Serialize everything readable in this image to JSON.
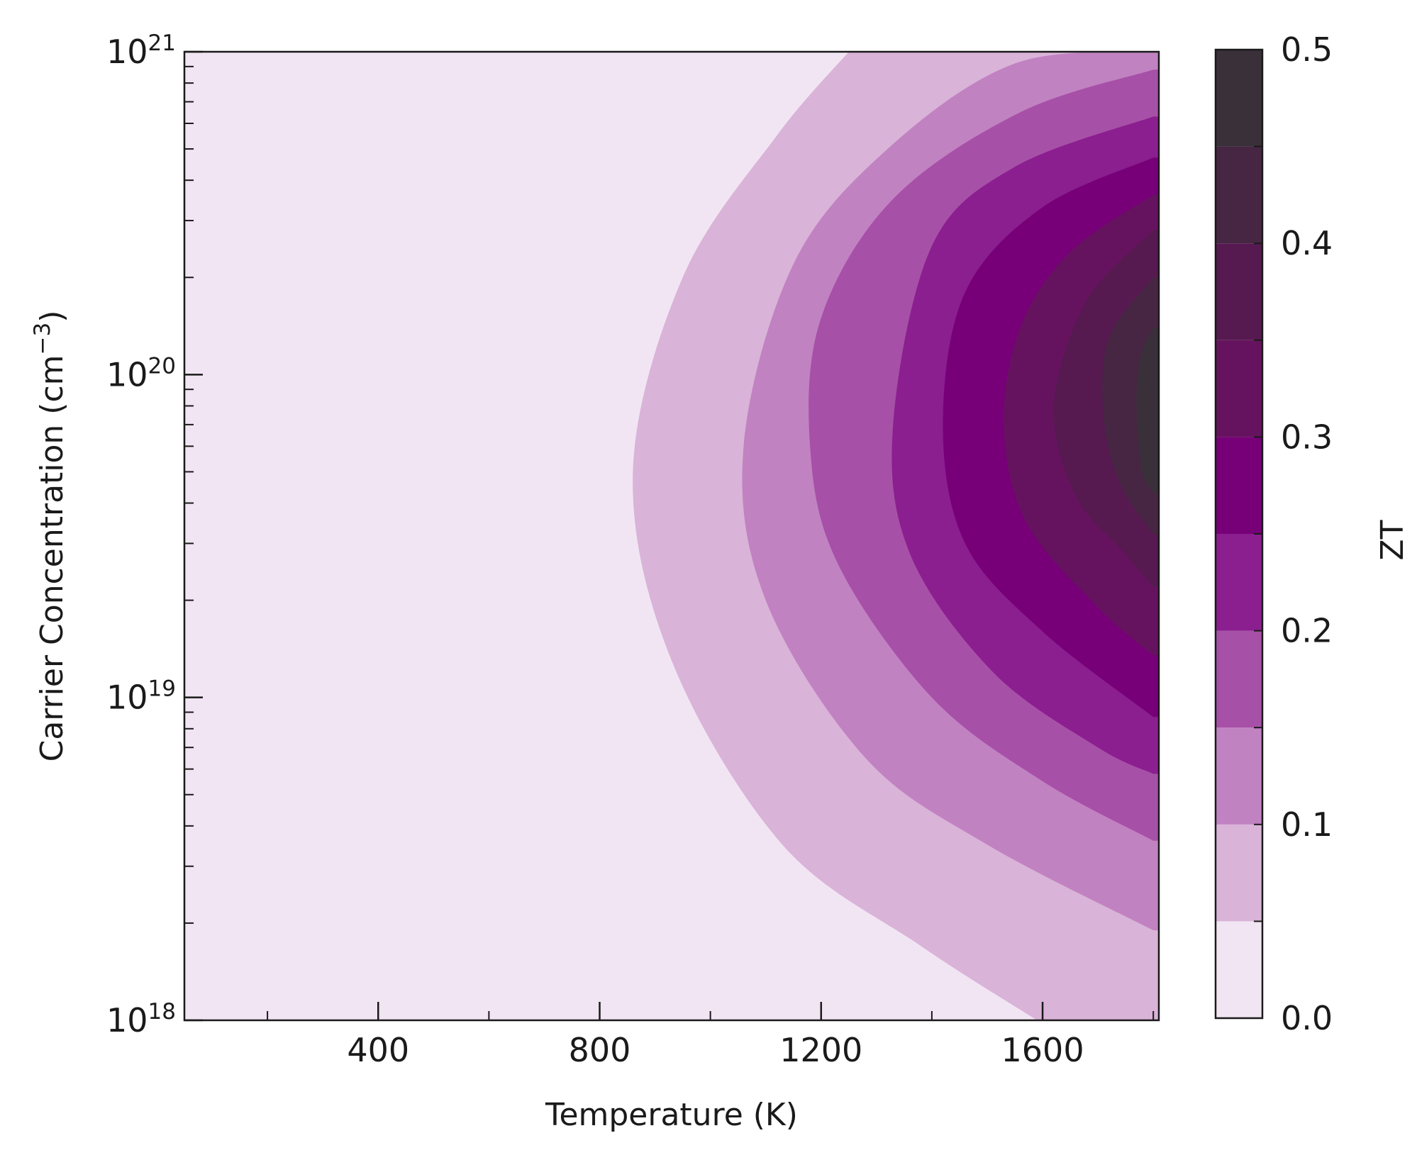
{
  "chart_data": {
    "type": "heatmap",
    "title": "",
    "xlabel": "Temperature (K)",
    "ylabel": {
      "main": "Carrier Concentration (cm",
      "sup": "−3",
      "close": ")"
    },
    "x": {
      "range": [
        50,
        1810
      ],
      "ticks_major": [
        {
          "value": 400,
          "label": "400"
        },
        {
          "value": 800,
          "label": "800"
        },
        {
          "value": 1200,
          "label": "1200"
        },
        {
          "value": 1600,
          "label": "1600"
        }
      ],
      "ticks_minor": [
        200,
        600,
        1000,
        1400,
        1800
      ]
    },
    "y": {
      "scale": "log",
      "range": [
        1e+18,
        1e+21
      ],
      "ticks_major": [
        {
          "value": 1e+18,
          "base": "10",
          "exp": "18"
        },
        {
          "value": 1e+19,
          "base": "10",
          "exp": "19"
        },
        {
          "value": 1e+20,
          "base": "10",
          "exp": "20"
        },
        {
          "value": 1e+21,
          "base": "10",
          "exp": "21"
        }
      ]
    },
    "peak": {
      "temperature": 1800,
      "concentration": 7.5e+19
    },
    "levels": [
      0.0,
      0.05,
      0.1,
      0.15,
      0.2,
      0.25,
      0.3,
      0.35,
      0.4,
      0.45,
      0.5
    ],
    "colors": [
      "#f2e5f3",
      "#d9b3d8",
      "#c182c1",
      "#a750a7",
      "#8b1f8f",
      "#770079",
      "#66135f",
      "#561950",
      "#472643",
      "#393039"
    ],
    "contour_boundaries": [
      {
        "level": 0.05,
        "points": [
          [
            1250,
            1e+21
          ],
          [
            1120,
            5.5e+20
          ],
          [
            950,
            2e+20
          ],
          [
            860,
            5e+19
          ],
          [
            930,
            1.3e+19
          ],
          [
            1130,
            3.5e+18
          ],
          [
            1380,
            1.7e+18
          ],
          [
            1590,
            1e+18
          ]
        ]
      },
      {
        "level": 0.1,
        "points": [
          [
            1800,
            1e+21
          ],
          [
            1550,
            9.2e+20
          ],
          [
            1320,
            5e+20
          ],
          [
            1150,
            2.2e+20
          ],
          [
            1060,
            6e+19
          ],
          [
            1100,
            2e+19
          ],
          [
            1280,
            6.5e+18
          ],
          [
            1500,
            3.5e+18
          ],
          [
            1800,
            1.9e+18
          ]
        ]
      },
      {
        "level": 0.15,
        "points": [
          [
            1800,
            8.8e+20
          ],
          [
            1560,
            6.5e+20
          ],
          [
            1330,
            3.5e+20
          ],
          [
            1200,
            1.5e+20
          ],
          [
            1180,
            6e+19
          ],
          [
            1230,
            2.6e+19
          ],
          [
            1400,
            1e+19
          ],
          [
            1600,
            5.5e+18
          ],
          [
            1800,
            3.6e+18
          ]
        ]
      },
      {
        "level": 0.2,
        "points": [
          [
            1800,
            6.3e+20
          ],
          [
            1550,
            4.4e+20
          ],
          [
            1400,
            2.5e+20
          ],
          [
            1330,
            7e+19
          ],
          [
            1360,
            2.8e+19
          ],
          [
            1510,
            1.2e+19
          ],
          [
            1700,
            7e+18
          ],
          [
            1800,
            5.8e+18
          ]
        ]
      },
      {
        "level": 0.25,
        "points": [
          [
            1800,
            4.7e+20
          ],
          [
            1600,
            3.3e+20
          ],
          [
            1460,
            1.8e+20
          ],
          [
            1420,
            7e+19
          ],
          [
            1460,
            3e+19
          ],
          [
            1600,
            1.6e+19
          ],
          [
            1800,
            8.7e+18
          ]
        ]
      },
      {
        "level": 0.3,
        "points": [
          [
            1800,
            3.6e+20
          ],
          [
            1650,
            2.4e+20
          ],
          [
            1560,
            1.4e+20
          ],
          [
            1530,
            7e+19
          ],
          [
            1570,
            3.5e+19
          ],
          [
            1700,
            1.9e+19
          ],
          [
            1800,
            1.35e+19
          ]
        ]
      },
      {
        "level": 0.35,
        "points": [
          [
            1800,
            2.8e+20
          ],
          [
            1680,
            1.7e+20
          ],
          [
            1620,
            8e+19
          ],
          [
            1660,
            4.2e+19
          ],
          [
            1740,
            2.9e+19
          ],
          [
            1800,
            2.2e+19
          ]
        ]
      },
      {
        "level": 0.4,
        "points": [
          [
            1800,
            2e+20
          ],
          [
            1720,
            1.3e+20
          ],
          [
            1710,
            7.5e+19
          ],
          [
            1740,
            4.6e+19
          ],
          [
            1800,
            3.2e+19
          ]
        ]
      },
      {
        "level": 0.45,
        "points": [
          [
            1800,
            1.4e+20
          ],
          [
            1775,
            1.1e+20
          ],
          [
            1770,
            7.5e+19
          ],
          [
            1780,
            5e+19
          ],
          [
            1800,
            4.3e+19
          ]
        ]
      }
    ],
    "colorbar": {
      "label": "ZT",
      "range": [
        0.0,
        0.5
      ],
      "ticks": [
        {
          "value": 0.0,
          "label": "0.0"
        },
        {
          "value": 0.1,
          "label": "0.1"
        },
        {
          "value": 0.2,
          "label": "0.2"
        },
        {
          "value": 0.3,
          "label": "0.3"
        },
        {
          "value": 0.4,
          "label": "0.4"
        },
        {
          "value": 0.5,
          "label": "0.5"
        }
      ]
    }
  }
}
